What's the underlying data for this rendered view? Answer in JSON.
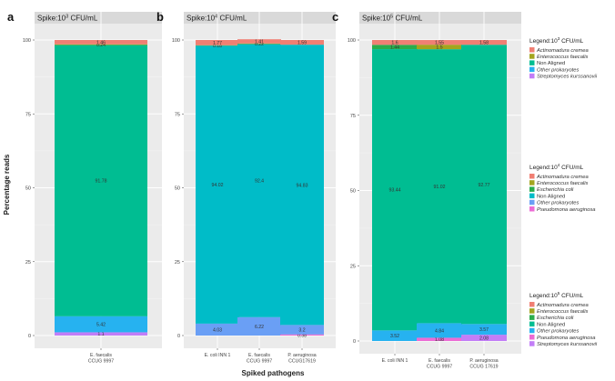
{
  "figure": {
    "ylabel": "Percentage reads",
    "xlabel": "Spiked pathogens",
    "y_ticks": [
      "0",
      "25",
      "50",
      "75",
      "100"
    ],
    "colors": {
      "Actinomadura cremea": "#f07f73",
      "Enterococcus faecalis": "#a3a51f",
      "Escherichia coli": "#2aad4c",
      "Non Aligned": "#00bd92",
      "Non Aligned b": "#00bcc8",
      "Other prokaryotes": "#26b2f0",
      "Other prokaryotes b": "#6a9ff5",
      "Pseudomona aeruginosa": "#ec6bd4",
      "Streptomyces kurssanovii": "#c27df7"
    }
  },
  "chart_data": [
    {
      "type": "bar",
      "stacked": true,
      "panel_letter": "a",
      "title_base": "Spike:10",
      "title_exp": "3",
      "title_unit": " CFU/mL",
      "ylim": [
        0,
        100
      ],
      "categories": [
        [
          "E. faecalis",
          "CCUG 9997"
        ]
      ],
      "series": [
        {
          "name": "Streptomyces kurssanovii",
          "color": "#c27df7",
          "values": [
            1.1
          ],
          "labels": [
            "1.1"
          ]
        },
        {
          "name": "Other prokaryotes",
          "color": "#26b2f0",
          "values": [
            5.42
          ],
          "labels": [
            "5.42"
          ]
        },
        {
          "name": "Non Aligned",
          "color": "#00bd92",
          "values": [
            91.78
          ],
          "labels": [
            "91.78"
          ]
        },
        {
          "name": "Enterococcus faecalis",
          "color": "#a3a51f",
          "values": [
            0.24
          ],
          "labels": [
            "0.24"
          ]
        },
        {
          "name": "Actinomadura cremea",
          "color": "#f07f73",
          "values": [
            1.46
          ],
          "labels": [
            "1.46"
          ]
        }
      ]
    },
    {
      "type": "bar",
      "stacked": true,
      "panel_letter": "b",
      "title_base": "Spike:10",
      "title_exp": "4",
      "title_unit": " CFU/mL",
      "ylim": [
        0,
        100
      ],
      "categories": [
        [
          "E. coli INN 1"
        ],
        [
          "E. faecalis",
          "CCUG 9997"
        ],
        [
          "P. aeruginosa",
          "CCUG17619"
        ]
      ],
      "series": [
        {
          "name": "Pseudomona aeruginosa",
          "color": "#ec6bd4",
          "values": [
            0,
            0,
            0.38
          ],
          "labels": [
            "",
            "",
            "0.38"
          ]
        },
        {
          "name": "Other prokaryotes",
          "color": "#6a9ff5",
          "values": [
            4.03,
            6.22,
            3.2
          ],
          "labels": [
            "4.03",
            "6.22",
            "3.2"
          ]
        },
        {
          "name": "Non Aligned",
          "color": "#00bcc8",
          "values": [
            94.02,
            92.4,
            94.83
          ],
          "labels": [
            "94.02",
            "92.4",
            "94.83"
          ]
        },
        {
          "name": "Escherichia coli",
          "color": "#2aad4c",
          "values": [
            0.18,
            0,
            0
          ],
          "labels": [
            "0.18",
            "",
            ""
          ]
        },
        {
          "name": "Enterococcus faecalis",
          "color": "#a3a51f",
          "values": [
            0,
            0.22,
            0
          ],
          "labels": [
            "",
            "0.22",
            ""
          ]
        },
        {
          "name": "Actinomadura cremea",
          "color": "#f07f73",
          "values": [
            1.77,
            1.41,
            1.59
          ],
          "labels": [
            "1.77",
            "1.41",
            "1.59"
          ]
        }
      ]
    },
    {
      "type": "bar",
      "stacked": true,
      "panel_letter": "c",
      "title_base": "Spike:10",
      "title_exp": "5",
      "title_unit": " CFU/mL",
      "ylim": [
        0,
        100
      ],
      "categories": [
        [
          "E. coli INN 1"
        ],
        [
          "E. faecalis",
          "CCUG 9997"
        ],
        [
          "P. aeruginosa",
          "CCUG 17619"
        ]
      ],
      "series": [
        {
          "name": "Streptomyces kurssanovii",
          "color": "#c27df7",
          "values": [
            0,
            0,
            2.08
          ],
          "labels": [
            "",
            "",
            "2.08"
          ]
        },
        {
          "name": "Pseudomona aeruginosa",
          "color": "#ec6bd4",
          "values": [
            0,
            1.08,
            0
          ],
          "labels": [
            "",
            "1.08",
            ""
          ]
        },
        {
          "name": "Other prokaryotes",
          "color": "#26b2f0",
          "values": [
            3.52,
            4.84,
            3.57
          ],
          "labels": [
            "3.52",
            "4.84",
            "3.57"
          ]
        },
        {
          "name": "Non Aligned",
          "color": "#00bd92",
          "values": [
            93.44,
            91.02,
            92.77
          ],
          "labels": [
            "93.44",
            "91.02",
            "92.77"
          ]
        },
        {
          "name": "Escherichia coli",
          "color": "#2aad4c",
          "values": [
            1.44,
            0,
            0
          ],
          "labels": [
            "1.44",
            "",
            ""
          ]
        },
        {
          "name": "Enterococcus faecalis",
          "color": "#a3a51f",
          "values": [
            0,
            1.5,
            0
          ],
          "labels": [
            "",
            "1.5",
            ""
          ]
        },
        {
          "name": "Actinomadura cremea",
          "color": "#f07f73",
          "values": [
            1.6,
            1.55,
            1.58
          ],
          "labels": [
            "1.6",
            "1.55",
            "1.58"
          ]
        }
      ]
    }
  ],
  "legends": [
    {
      "title_base": "Legend:10",
      "title_exp": "3",
      "title_unit": " CFU/mL",
      "items": [
        {
          "label": "Actinomadura cremea",
          "color": "#f07f73",
          "italic": true
        },
        {
          "label": "Enterococcus faecalis",
          "color": "#a3a51f",
          "italic": true
        },
        {
          "label": "Non Aligned",
          "color": "#00bd92",
          "italic": false
        },
        {
          "label": "Other prokaryotes",
          "color": "#26b2f0",
          "italic": true
        },
        {
          "label": "Streptomyces kurssanovii",
          "color": "#c27df7",
          "italic": true
        }
      ]
    },
    {
      "title_base": "Legend:10",
      "title_exp": "4",
      "title_unit": " CFU/mL",
      "items": [
        {
          "label": "Actinomadura cremea",
          "color": "#f07f73",
          "italic": true
        },
        {
          "label": "Enterococcus faecalis",
          "color": "#a3a51f",
          "italic": true
        },
        {
          "label": "Escherichia coli",
          "color": "#2aad4c",
          "italic": true
        },
        {
          "label": "Non Aligned",
          "color": "#00bcc8",
          "italic": false
        },
        {
          "label": "Other prokaryotes",
          "color": "#6a9ff5",
          "italic": true
        },
        {
          "label": "Pseudomona aeruginosa",
          "color": "#ec6bd4",
          "italic": true
        }
      ]
    },
    {
      "title_base": "Legend:10",
      "title_exp": "5",
      "title_unit": " CFU/mL",
      "items": [
        {
          "label": "Actinomadura cremea",
          "color": "#f07f73",
          "italic": true
        },
        {
          "label": "Enterococcus faecalis",
          "color": "#a3a51f",
          "italic": true
        },
        {
          "label": "Escherichia coli",
          "color": "#2aad4c",
          "italic": true
        },
        {
          "label": "Non Aligned",
          "color": "#00bd92",
          "italic": false
        },
        {
          "label": "Other prokaryotes",
          "color": "#26b2f0",
          "italic": true
        },
        {
          "label": "Pseudomona aeruginosa",
          "color": "#ec6bd4",
          "italic": true
        },
        {
          "label": "Streptomyces kurssanovii",
          "color": "#c27df7",
          "italic": true
        }
      ]
    }
  ]
}
